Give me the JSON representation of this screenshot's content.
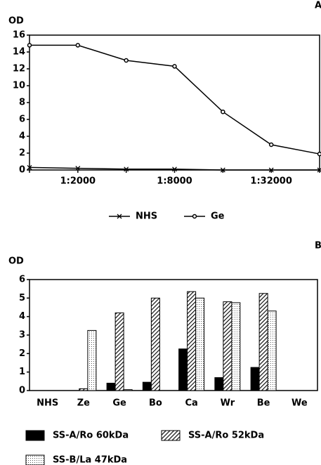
{
  "chart_data": [
    {
      "type": "line",
      "panel": "A",
      "ylabel": "OD",
      "categories": [
        null,
        "1:2000",
        null,
        "1:8000",
        null,
        "1:32000",
        null
      ],
      "ylim": [
        0,
        16
      ],
      "yticks": [
        0,
        2,
        4,
        6,
        8,
        10,
        12,
        14,
        16
      ],
      "series": [
        {
          "name": "NHS",
          "color": "#000000",
          "marker": "x",
          "values": [
            0.3,
            0.2,
            0.1,
            0.1,
            0.0,
            0.0,
            0.0
          ]
        },
        {
          "name": "Ge",
          "color": "#000000",
          "marker": "o",
          "values": [
            14.8,
            14.8,
            13.0,
            12.3,
            6.9,
            3.0,
            1.9
          ]
        }
      ]
    },
    {
      "type": "bar",
      "panel": "B",
      "ylabel": "OD",
      "categories": [
        "NHS",
        "Ze",
        "Ge",
        "Bo",
        "Ca",
        "Wr",
        "Be",
        "We"
      ],
      "ylim": [
        0,
        6
      ],
      "yticks": [
        0,
        1,
        2,
        3,
        4,
        5,
        6
      ],
      "series": [
        {
          "name": "SS-A/Ro 60kDa",
          "color": "#000000",
          "pattern": "solid",
          "values": [
            0,
            0,
            0.4,
            0.45,
            2.25,
            0.7,
            1.25,
            0
          ]
        },
        {
          "name": "SS-A/Ro 52kDa",
          "color": "#000000",
          "pattern": "hatch",
          "values": [
            0,
            0.1,
            4.2,
            5.0,
            5.35,
            4.8,
            5.25,
            0
          ]
        },
        {
          "name": "SS-B/La 47kDa",
          "color": "#000000",
          "pattern": "dots",
          "values": [
            0,
            3.25,
            0.05,
            0,
            5.0,
            4.75,
            4.3,
            0
          ]
        }
      ]
    }
  ]
}
